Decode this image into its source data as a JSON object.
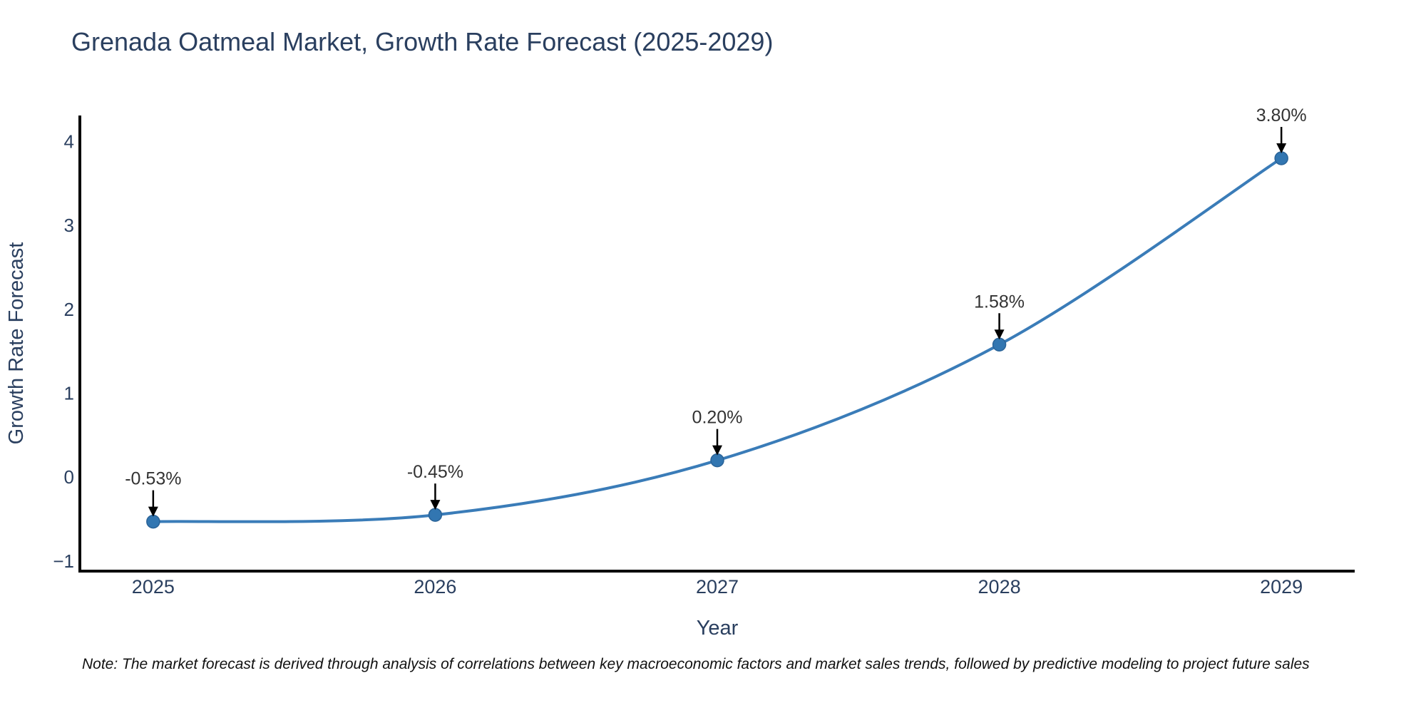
{
  "note": "Note: The market forecast is derived through analysis of correlations between key macroeconomic factors and market sales trends, followed by predictive modeling to project future sales",
  "colors": {
    "background": "#ffffff",
    "title_text": "#2a3f5f",
    "tick_text": "#2a3f5f",
    "axis_line": "#000000",
    "line": "#3a7cb8",
    "marker_fill": "#3276b1",
    "marker_edge": "#2a6398",
    "annotation_text": "#333333",
    "arrow": "#000000",
    "note_text": "#111111"
  },
  "chart_data": {
    "type": "line",
    "title": "Grenada Oatmeal Market, Growth Rate Forecast (2025-2029)",
    "xlabel": "Year",
    "ylabel": "Growth Rate Forecast",
    "x": [
      2025,
      2026,
      2027,
      2028,
      2029
    ],
    "x_tick_labels": [
      "2025",
      "2026",
      "2027",
      "2028",
      "2029"
    ],
    "series": [
      {
        "name": "Growth Rate Forecast",
        "values": [
          -0.53,
          -0.45,
          0.2,
          1.58,
          3.8
        ],
        "point_labels": [
          "-0.53%",
          "-0.45%",
          "0.20%",
          "1.58%",
          "3.80%"
        ]
      }
    ],
    "y_ticks": {
      "values": [
        -1,
        0,
        1,
        2,
        3,
        4
      ],
      "labels": [
        "−1",
        "0",
        "1",
        "2",
        "3",
        "4"
      ]
    },
    "xlim": [
      2024.74,
      2029.26
    ],
    "ylim": [
      -1.12,
      4.31
    ],
    "grid": false,
    "legend": "none",
    "line_shape": "spline",
    "markers": true,
    "annotations": "value label with downward arrow above each data point"
  }
}
